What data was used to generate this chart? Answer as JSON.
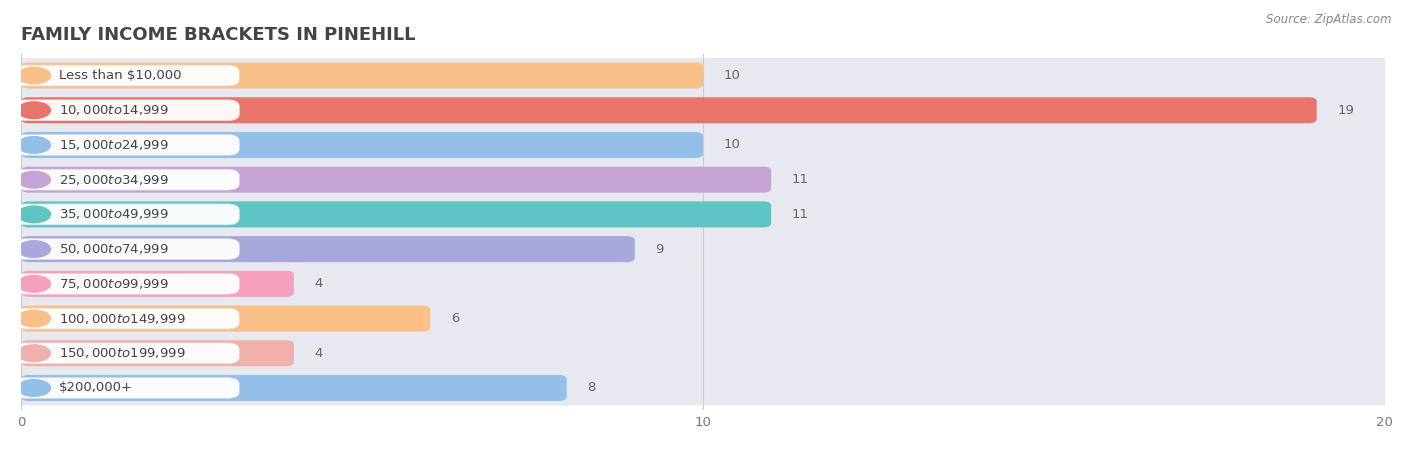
{
  "title": "FAMILY INCOME BRACKETS IN PINEHILL",
  "source": "Source: ZipAtlas.com",
  "categories": [
    "Less than $10,000",
    "$10,000 to $14,999",
    "$15,000 to $24,999",
    "$25,000 to $34,999",
    "$35,000 to $49,999",
    "$50,000 to $74,999",
    "$75,000 to $99,999",
    "$100,000 to $149,999",
    "$150,000 to $199,999",
    "$200,000+"
  ],
  "values": [
    10,
    19,
    10,
    11,
    11,
    9,
    4,
    6,
    4,
    8
  ],
  "bar_colors": [
    "#F9C088",
    "#E8756A",
    "#93BFE8",
    "#C4A4D4",
    "#5EC4C4",
    "#A8A8DC",
    "#F5A0BC",
    "#FAC088",
    "#F0B0AC",
    "#93BFE8"
  ],
  "xlim": [
    0,
    20
  ],
  "xticks": [
    0,
    10,
    20
  ],
  "fig_bg_color": "#ffffff",
  "chart_bg_color": "#f0f0f4",
  "row_bg_color": "#e8e8f0",
  "label_bg_color": "#f8f8f8",
  "title_fontsize": 13,
  "label_fontsize": 9.5,
  "value_fontsize": 9.5,
  "source_fontsize": 8.5,
  "title_color": "#444444",
  "label_color": "#444444",
  "value_color": "#666666",
  "source_color": "#888888"
}
